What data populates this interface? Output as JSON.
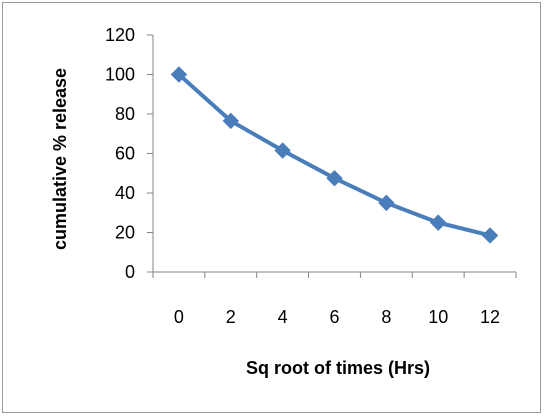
{
  "chart_data": {
    "type": "line",
    "title": "",
    "xlabel": "Sq  root of times (Hrs)",
    "ylabel": "cumulative % release",
    "xlim": [
      -1,
      13
    ],
    "ylim": [
      0,
      120
    ],
    "x_ticks": [
      0,
      2,
      4,
      6,
      8,
      10,
      12
    ],
    "y_ticks": [
      0,
      20,
      40,
      60,
      80,
      100,
      120
    ],
    "grid": false,
    "legend": "none",
    "marker": "diamond",
    "series": [
      {
        "x": [
          0,
          2,
          4,
          6,
          8,
          10,
          12
        ],
        "values": [
          100,
          76.5,
          61.5,
          47.5,
          35,
          25,
          18.5
        ],
        "color": "#4a7ebb"
      }
    ]
  }
}
